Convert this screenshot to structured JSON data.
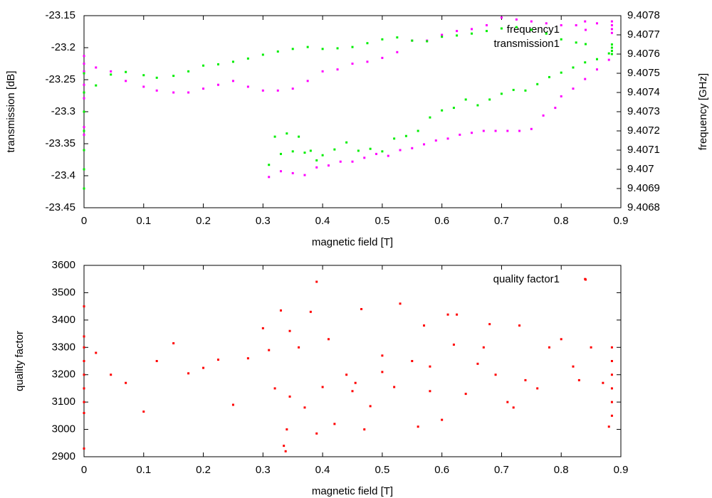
{
  "chart_data": [
    {
      "type": "scatter",
      "xlabel": "magnetic field [T]",
      "ylabel": "transmission [dB]",
      "y2label": "frequency [GHz]",
      "xlim": [
        0,
        0.9
      ],
      "xticks": [
        0,
        0.1,
        0.2,
        0.3,
        0.4,
        0.5,
        0.6,
        0.7,
        0.8,
        0.9
      ],
      "ylim": [
        -23.45,
        -23.15
      ],
      "yticks": [
        -23.45,
        -23.4,
        -23.35,
        -23.3,
        -23.25,
        -23.2,
        -23.15
      ],
      "y2lim": [
        9.4068,
        9.4078
      ],
      "y2ticks": [
        9.4068,
        9.4069,
        9.407,
        9.4071,
        9.4072,
        9.4073,
        9.4074,
        9.4075,
        9.4076,
        9.4077,
        9.4078
      ],
      "legend": "top right",
      "series": [
        {
          "name": "frequency1",
          "color": "#ff00ff",
          "axis": "y2",
          "x": [
            0,
            0,
            0,
            0,
            0,
            0,
            0,
            0,
            0.02,
            0.045,
            0.07,
            0.1,
            0.122,
            0.15,
            0.175,
            0.2,
            0.225,
            0.25,
            0.275,
            0.3,
            0.325,
            0.35,
            0.375,
            0.4,
            0.425,
            0.45,
            0.475,
            0.5,
            0.525,
            0.55,
            0.575,
            0.6,
            0.625,
            0.65,
            0.675,
            0.7,
            0.725,
            0.75,
            0.775,
            0.8,
            0.825,
            0.84,
            0.86,
            0.31,
            0.33,
            0.35,
            0.37,
            0.39,
            0.41,
            0.43,
            0.45,
            0.47,
            0.49,
            0.51,
            0.53,
            0.55,
            0.57,
            0.59,
            0.61,
            0.63,
            0.65,
            0.67,
            0.69,
            0.71,
            0.73,
            0.75,
            0.77,
            0.79,
            0.8,
            0.82,
            0.84,
            0.86,
            0.88,
            0.885,
            0.885,
            0.885,
            0.885
          ],
          "values": [
            9.40759,
            9.40755,
            9.40751,
            9.40744,
            9.40737,
            9.4073,
            9.40722,
            9.40718,
            9.40753,
            9.40751,
            9.40746,
            9.40743,
            9.40741,
            9.4074,
            9.4074,
            9.40742,
            9.40744,
            9.40746,
            9.40743,
            9.40741,
            9.40741,
            9.40742,
            9.40746,
            9.40751,
            9.40752,
            9.40755,
            9.40756,
            9.40758,
            9.40761,
            9.40767,
            9.40767,
            9.4077,
            9.40772,
            9.40773,
            9.40775,
            9.40779,
            9.40778,
            9.40777,
            9.40776,
            9.40775,
            9.40775,
            9.40777,
            9.40776,
            9.40696,
            9.40699,
            9.40698,
            9.40697,
            9.40701,
            9.40702,
            9.40704,
            9.40704,
            9.40706,
            9.40708,
            9.40707,
            9.4071,
            9.40711,
            9.40713,
            9.40715,
            9.40716,
            9.40718,
            9.40719,
            9.4072,
            9.4072,
            9.4072,
            9.4072,
            9.40721,
            9.40728,
            9.40732,
            9.40738,
            9.40742,
            9.40747,
            9.40752,
            9.40757,
            9.40777,
            9.40775,
            9.40773,
            9.40771
          ]
        },
        {
          "name": "transmission1",
          "color": "#00ee00",
          "x": [
            0,
            0,
            0,
            0,
            0,
            0,
            0,
            0.02,
            0.045,
            0.07,
            0.1,
            0.122,
            0.15,
            0.175,
            0.2,
            0.225,
            0.25,
            0.275,
            0.3,
            0.325,
            0.35,
            0.375,
            0.4,
            0.425,
            0.45,
            0.475,
            0.5,
            0.525,
            0.55,
            0.575,
            0.6,
            0.625,
            0.65,
            0.675,
            0.7,
            0.725,
            0.75,
            0.775,
            0.8,
            0.825,
            0.31,
            0.32,
            0.33,
            0.34,
            0.35,
            0.36,
            0.37,
            0.38,
            0.39,
            0.4,
            0.42,
            0.44,
            0.46,
            0.48,
            0.5,
            0.52,
            0.54,
            0.56,
            0.58,
            0.6,
            0.62,
            0.64,
            0.66,
            0.68,
            0.7,
            0.72,
            0.74,
            0.76,
            0.78,
            0.8,
            0.82,
            0.84,
            0.86,
            0.88,
            0.885,
            0.885,
            0.885,
            0.885
          ],
          "values": [
            -23.24,
            -23.27,
            -23.3,
            -23.33,
            -23.36,
            -23.39,
            -23.42,
            -23.259,
            -23.242,
            -23.238,
            -23.243,
            -23.247,
            -23.244,
            -23.237,
            -23.228,
            -23.226,
            -23.222,
            -23.217,
            -23.211,
            -23.206,
            -23.202,
            -23.199,
            -23.202,
            -23.201,
            -23.199,
            -23.193,
            -23.187,
            -23.184,
            -23.189,
            -23.19,
            -23.183,
            -23.181,
            -23.178,
            -23.174,
            -23.17,
            -23.168,
            -23.172,
            -23.178,
            -23.187,
            -23.192,
            -23.383,
            -23.339,
            -23.366,
            -23.334,
            -23.362,
            -23.339,
            -23.364,
            -23.361,
            -23.376,
            -23.368,
            -23.359,
            -23.348,
            -23.361,
            -23.358,
            -23.362,
            -23.342,
            -23.338,
            -23.33,
            -23.309,
            -23.298,
            -23.294,
            -23.281,
            -23.29,
            -23.281,
            -23.272,
            -23.266,
            -23.267,
            -23.257,
            -23.246,
            -23.239,
            -23.231,
            -23.223,
            -23.218,
            -23.209,
            -23.195,
            -23.2,
            -23.205,
            -23.21
          ]
        }
      ]
    },
    {
      "type": "scatter",
      "xlabel": "magnetic field [T]",
      "ylabel": "quality factor",
      "xlim": [
        0,
        0.9
      ],
      "xticks": [
        0,
        0.1,
        0.2,
        0.3,
        0.4,
        0.5,
        0.6,
        0.7,
        0.8,
        0.9
      ],
      "ylim": [
        2900,
        3600
      ],
      "yticks": [
        2900,
        3000,
        3100,
        3200,
        3300,
        3400,
        3500,
        3600
      ],
      "legend": "top right",
      "series": [
        {
          "name": "quality factor1",
          "color": "#ff0000",
          "x": [
            0,
            0,
            0,
            0,
            0,
            0,
            0,
            0,
            0,
            0.02,
            0.045,
            0.07,
            0.1,
            0.122,
            0.15,
            0.175,
            0.2,
            0.225,
            0.25,
            0.275,
            0.3,
            0.31,
            0.32,
            0.33,
            0.335,
            0.338,
            0.34,
            0.345,
            0.345,
            0.36,
            0.37,
            0.38,
            0.39,
            0.39,
            0.4,
            0.41,
            0.42,
            0.44,
            0.45,
            0.455,
            0.465,
            0.47,
            0.48,
            0.5,
            0.5,
            0.52,
            0.53,
            0.55,
            0.56,
            0.57,
            0.58,
            0.58,
            0.6,
            0.61,
            0.62,
            0.625,
            0.64,
            0.66,
            0.67,
            0.68,
            0.69,
            0.71,
            0.72,
            0.73,
            0.74,
            0.76,
            0.78,
            0.8,
            0.82,
            0.83,
            0.84,
            0.85,
            0.87,
            0.88,
            0.885,
            0.885,
            0.885,
            0.885,
            0.885,
            0.885
          ],
          "values": [
            3450,
            3340,
            3300,
            3250,
            3200,
            3150,
            3100,
            3060,
            2930,
            3280,
            3200,
            3170,
            3065,
            3250,
            3315,
            3205,
            3225,
            3255,
            3090,
            3260,
            3370,
            3290,
            3150,
            3435,
            2940,
            2920,
            3000,
            3120,
            3360,
            3300,
            3080,
            3430,
            3540,
            2985,
            3155,
            3330,
            3020,
            3200,
            3140,
            3170,
            3440,
            3000,
            3085,
            3270,
            3210,
            3155,
            3460,
            3250,
            3010,
            3380,
            3140,
            3230,
            3035,
            3420,
            3310,
            3420,
            3130,
            3240,
            3300,
            3385,
            3200,
            3100,
            3080,
            3380,
            3180,
            3150,
            3300,
            3330,
            3230,
            3180,
            3550,
            3300,
            3170,
            3010,
            3300,
            3250,
            3200,
            3150,
            3100,
            3050
          ]
        }
      ]
    }
  ]
}
